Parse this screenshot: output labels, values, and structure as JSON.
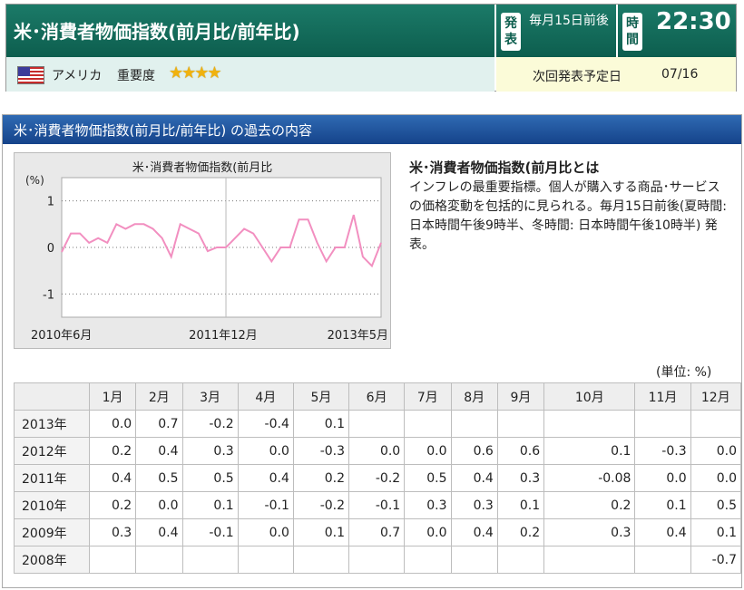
{
  "header": {
    "title": "米･消費者物価指数(前月比/前年比)",
    "release_tag": "発表",
    "release_text": "毎月15日前後",
    "time_tag": "時間",
    "time": "22:30",
    "country": "アメリカ",
    "importance_label": "重要度",
    "stars": "★★★★",
    "next_label": "次回発表予定日",
    "next_date": "07/16"
  },
  "section": {
    "heading": "米･消費者物価指数(前月比/前年比) の過去の内容",
    "desc_title": "米･消費者物価指数(前月比とは",
    "desc_body": "インフレの最重要指標。個人が購入する商品･サービスの価格変動を包括的に見られる。毎月15日前後(夏時間: 日本時間午後9時半、冬時間: 日本時間午後10時半) 発表。"
  },
  "chart_data": {
    "type": "line",
    "title": "米･消費者物価指数(前月比",
    "ylabel": "(%)",
    "ylim": [
      -1.5,
      1.5
    ],
    "yticks": [
      1,
      0,
      -1
    ],
    "xtick_labels": [
      "2010年6月",
      "2011年12月",
      "2013年5月"
    ],
    "color": "#f28fc0",
    "series": [
      {
        "x": [
          "2010-06",
          "2010-07",
          "2010-08",
          "2010-09",
          "2010-10",
          "2010-11",
          "2010-12",
          "2011-01",
          "2011-02",
          "2011-03",
          "2011-04",
          "2011-05",
          "2011-06",
          "2011-07",
          "2011-08",
          "2011-09",
          "2011-10",
          "2011-11",
          "2011-12",
          "2012-01",
          "2012-02",
          "2012-03",
          "2012-04",
          "2012-05",
          "2012-06",
          "2012-07",
          "2012-08",
          "2012-09",
          "2012-10",
          "2012-11",
          "2012-12",
          "2013-01",
          "2013-02",
          "2013-03",
          "2013-04",
          "2013-05"
        ],
        "values": [
          -0.1,
          0.3,
          0.3,
          0.1,
          0.2,
          0.1,
          0.5,
          0.4,
          0.5,
          0.5,
          0.4,
          0.2,
          -0.2,
          0.5,
          0.4,
          0.3,
          -0.08,
          0.0,
          0.0,
          0.2,
          0.4,
          0.3,
          0.0,
          -0.3,
          0.0,
          0.0,
          0.6,
          0.6,
          0.1,
          -0.3,
          0.0,
          0.0,
          0.7,
          -0.2,
          -0.4,
          0.1
        ]
      }
    ]
  },
  "table": {
    "unit": "(単位: %)",
    "months": [
      "1月",
      "2月",
      "3月",
      "4月",
      "5月",
      "6月",
      "7月",
      "8月",
      "9月",
      "10月",
      "11月",
      "12月"
    ],
    "rows": [
      {
        "year": "2013年",
        "values": [
          "0.0",
          "0.7",
          "-0.2",
          "-0.4",
          "0.1",
          "",
          "",
          "",
          "",
          "",
          "",
          ""
        ]
      },
      {
        "year": "2012年",
        "values": [
          "0.2",
          "0.4",
          "0.3",
          "0.0",
          "-0.3",
          "0.0",
          "0.0",
          "0.6",
          "0.6",
          "0.1",
          "-0.3",
          "0.0"
        ]
      },
      {
        "year": "2011年",
        "values": [
          "0.4",
          "0.5",
          "0.5",
          "0.4",
          "0.2",
          "-0.2",
          "0.5",
          "0.4",
          "0.3",
          "-0.08",
          "0.0",
          "0.0"
        ]
      },
      {
        "year": "2010年",
        "values": [
          "0.2",
          "0.0",
          "0.1",
          "-0.1",
          "-0.2",
          "-0.1",
          "0.3",
          "0.3",
          "0.1",
          "0.2",
          "0.1",
          "0.5"
        ]
      },
      {
        "year": "2009年",
        "values": [
          "0.3",
          "0.4",
          "-0.1",
          "0.0",
          "0.1",
          "0.7",
          "0.0",
          "0.4",
          "0.2",
          "0.3",
          "0.4",
          "0.1"
        ]
      },
      {
        "year": "2008年",
        "values": [
          "",
          "",
          "",
          "",
          "",
          "",
          "",
          "",
          "",
          "",
          "",
          "-0.7"
        ]
      }
    ]
  }
}
